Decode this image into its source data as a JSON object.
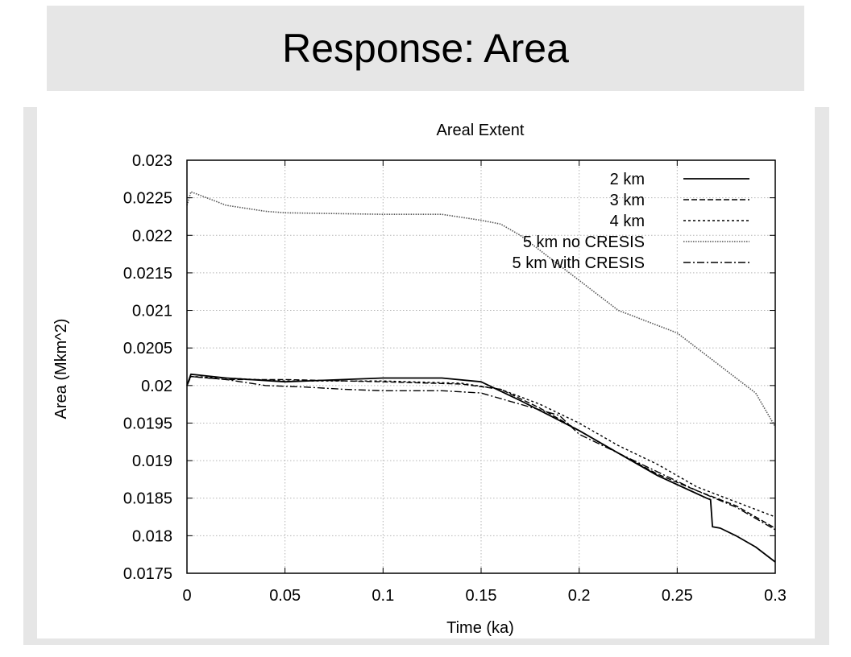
{
  "slide": {
    "title": "Response: Area"
  },
  "chart_data": {
    "type": "line",
    "title": "Areal Extent",
    "xlabel": "Time (ka)",
    "ylabel": "Area (Mkm^2)",
    "xlim": [
      0,
      0.3
    ],
    "ylim": [
      0.0175,
      0.023
    ],
    "grid": true,
    "legend_position": "top-right",
    "x_ticks": [
      {
        "v": 0,
        "label": "0"
      },
      {
        "v": 0.05,
        "label": "0.05"
      },
      {
        "v": 0.1,
        "label": "0.1"
      },
      {
        "v": 0.15,
        "label": "0.15"
      },
      {
        "v": 0.2,
        "label": "0.2"
      },
      {
        "v": 0.25,
        "label": "0.25"
      },
      {
        "v": 0.3,
        "label": "0.3"
      }
    ],
    "y_ticks": [
      {
        "v": 0.0175,
        "label": "0.0175"
      },
      {
        "v": 0.018,
        "label": "0.018"
      },
      {
        "v": 0.0185,
        "label": "0.0185"
      },
      {
        "v": 0.019,
        "label": "0.019"
      },
      {
        "v": 0.0195,
        "label": "0.0195"
      },
      {
        "v": 0.02,
        "label": "0.02"
      },
      {
        "v": 0.0205,
        "label": "0.0205"
      },
      {
        "v": 0.021,
        "label": "0.021"
      },
      {
        "v": 0.0215,
        "label": "0.0215"
      },
      {
        "v": 0.022,
        "label": "0.022"
      },
      {
        "v": 0.0225,
        "label": "0.0225"
      },
      {
        "v": 0.023,
        "label": "0.023"
      }
    ],
    "series": [
      {
        "name": "2 km",
        "dash": "",
        "width": 1.8,
        "color": "#000000",
        "points": [
          [
            0,
            0.02
          ],
          [
            0.002,
            0.02015
          ],
          [
            0.02,
            0.0201
          ],
          [
            0.05,
            0.02005
          ],
          [
            0.08,
            0.02008
          ],
          [
            0.1,
            0.0201
          ],
          [
            0.13,
            0.0201
          ],
          [
            0.15,
            0.02005
          ],
          [
            0.17,
            0.0198
          ],
          [
            0.185,
            0.0196
          ],
          [
            0.2,
            0.0194
          ],
          [
            0.22,
            0.0191
          ],
          [
            0.24,
            0.0188
          ],
          [
            0.255,
            0.01862
          ],
          [
            0.265,
            0.0185
          ],
          [
            0.267,
            0.01848
          ],
          [
            0.268,
            0.01812
          ],
          [
            0.272,
            0.0181
          ],
          [
            0.28,
            0.018
          ],
          [
            0.29,
            0.01785
          ],
          [
            0.3,
            0.01765
          ]
        ]
      },
      {
        "name": "3 km",
        "dash": "7,3",
        "width": 1.4,
        "color": "#000000",
        "points": [
          [
            0,
            0.02
          ],
          [
            0.002,
            0.02012
          ],
          [
            0.02,
            0.02008
          ],
          [
            0.05,
            0.02008
          ],
          [
            0.1,
            0.02005
          ],
          [
            0.14,
            0.02002
          ],
          [
            0.16,
            0.01995
          ],
          [
            0.18,
            0.0197
          ],
          [
            0.2,
            0.0194
          ],
          [
            0.22,
            0.0191
          ],
          [
            0.24,
            0.01882
          ],
          [
            0.26,
            0.0186
          ],
          [
            0.28,
            0.0184
          ],
          [
            0.3,
            0.0181
          ]
        ]
      },
      {
        "name": "4 km",
        "dash": "3,3",
        "width": 1.4,
        "color": "#000000",
        "points": [
          [
            0,
            0.02
          ],
          [
            0.002,
            0.02012
          ],
          [
            0.02,
            0.0201
          ],
          [
            0.05,
            0.02006
          ],
          [
            0.1,
            0.02006
          ],
          [
            0.14,
            0.02003
          ],
          [
            0.16,
            0.01995
          ],
          [
            0.18,
            0.01975
          ],
          [
            0.2,
            0.0195
          ],
          [
            0.22,
            0.0192
          ],
          [
            0.24,
            0.01895
          ],
          [
            0.26,
            0.01865
          ],
          [
            0.28,
            0.01845
          ],
          [
            0.3,
            0.01825
          ]
        ]
      },
      {
        "name": "5 km no CRESIS",
        "dash": "1.5,1.5",
        "width": 1.6,
        "color": "#555555",
        "points": [
          [
            0,
            0.0224
          ],
          [
            0.002,
            0.02258
          ],
          [
            0.01,
            0.0225
          ],
          [
            0.02,
            0.0224
          ],
          [
            0.04,
            0.02232
          ],
          [
            0.05,
            0.0223
          ],
          [
            0.1,
            0.02228
          ],
          [
            0.13,
            0.02228
          ],
          [
            0.15,
            0.0222
          ],
          [
            0.16,
            0.02215
          ],
          [
            0.17,
            0.022
          ],
          [
            0.18,
            0.0218
          ],
          [
            0.19,
            0.0216
          ],
          [
            0.2,
            0.0214
          ],
          [
            0.21,
            0.0212
          ],
          [
            0.22,
            0.021
          ],
          [
            0.24,
            0.0208
          ],
          [
            0.25,
            0.0207
          ],
          [
            0.26,
            0.0205
          ],
          [
            0.27,
            0.0203
          ],
          [
            0.28,
            0.0201
          ],
          [
            0.29,
            0.0199
          ],
          [
            0.3,
            0.01945
          ]
        ]
      },
      {
        "name": "5 km with CRESIS",
        "dash": "9,3,2,3",
        "width": 1.4,
        "color": "#000000",
        "points": [
          [
            0,
            0.02
          ],
          [
            0.002,
            0.02012
          ],
          [
            0.02,
            0.02008
          ],
          [
            0.04,
            0.02
          ],
          [
            0.06,
            0.01998
          ],
          [
            0.08,
            0.01995
          ],
          [
            0.1,
            0.01993
          ],
          [
            0.13,
            0.01993
          ],
          [
            0.15,
            0.0199
          ],
          [
            0.17,
            0.01975
          ],
          [
            0.19,
            0.0196
          ],
          [
            0.2,
            0.01935
          ],
          [
            0.22,
            0.0191
          ],
          [
            0.24,
            0.01885
          ],
          [
            0.26,
            0.0186
          ],
          [
            0.28,
            0.01838
          ],
          [
            0.3,
            0.01808
          ]
        ]
      }
    ]
  }
}
